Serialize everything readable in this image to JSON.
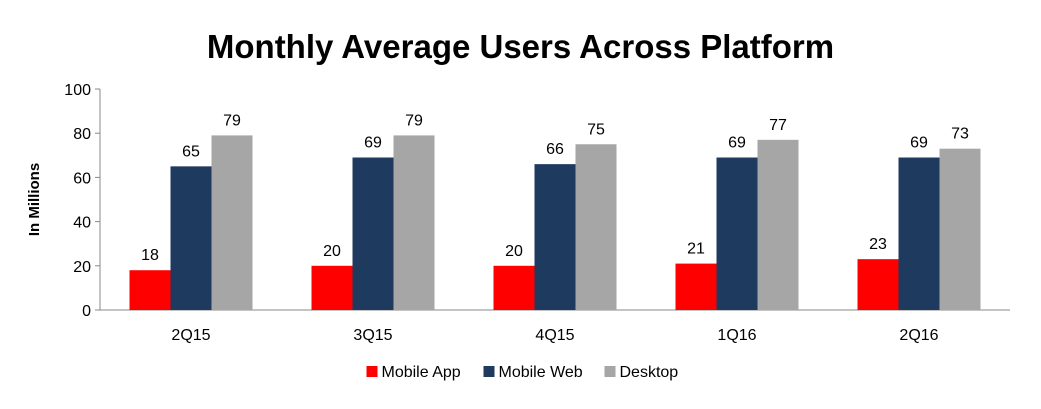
{
  "chart_data": {
    "type": "bar",
    "title": "Monthly Average Users Across Platform",
    "xlabel": "",
    "ylabel": "In Millions",
    "ylim": [
      0,
      100
    ],
    "yticks": [
      0,
      20,
      40,
      60,
      80,
      100
    ],
    "categories": [
      "2Q15",
      "3Q15",
      "4Q15",
      "1Q16",
      "2Q16"
    ],
    "series": [
      {
        "name": "Mobile App",
        "color": "#ff0000",
        "values": [
          18,
          20,
          20,
          21,
          23
        ]
      },
      {
        "name": "Mobile Web",
        "color": "#1f3a5f",
        "values": [
          65,
          69,
          66,
          69,
          69
        ]
      },
      {
        "name": "Desktop",
        "color": "#a6a6a6",
        "values": [
          79,
          79,
          75,
          77,
          73
        ]
      }
    ],
    "legend": "bottom-center",
    "grid": false
  }
}
